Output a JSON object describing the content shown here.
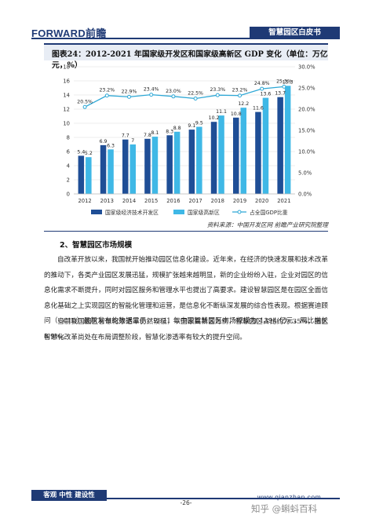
{
  "header": {
    "logo": "FORWARD前瞻",
    "tag": "智慧园区白皮书"
  },
  "figure": {
    "title": "图表24：2012-2021 年国家级开发区和国家级高新区 GDP 变化（单位：万亿元，%）",
    "source": "资料来源：中国开发区网  前瞻产业研究院整理"
  },
  "chart_data": {
    "type": "bar",
    "categories": [
      "2012",
      "2013",
      "2014",
      "2015",
      "2016",
      "2017",
      "2018",
      "2019",
      "2020",
      "2021"
    ],
    "series": [
      {
        "name": "国家级经济技术开发区",
        "values": [
          5.4,
          6.9,
          7.7,
          7.8,
          8.3,
          9.1,
          10.2,
          10.8,
          11.6,
          13.7
        ],
        "color": "#1f4e96"
      },
      {
        "name": "国家级高新区",
        "values": [
          5.2,
          6.3,
          7,
          8.1,
          8.8,
          9.5,
          11.1,
          12.2,
          13.6,
          15.3
        ],
        "color": "#3fb8e6"
      },
      {
        "name": "占全国GDP比重",
        "values": [
          20.5,
          23.2,
          22.9,
          23.4,
          23.0,
          22.5,
          23.3,
          23.2,
          24.8,
          25.3
        ],
        "axis": "right",
        "type": "line",
        "color": "#2ea8d6"
      }
    ],
    "ylim_left": [
      0,
      18
    ],
    "yticks_left": [
      0,
      2,
      4,
      6,
      8,
      10,
      12,
      14,
      16,
      18
    ],
    "ylim_right": [
      0,
      30
    ],
    "yticks_right": [
      "0.0%",
      "5.0%",
      "10.0%",
      "15.0%",
      "20.0%",
      "25.0%",
      "30.0%"
    ],
    "line_labels": [
      "20.5%",
      "23.2%",
      "22.9%",
      "23.4%",
      "23.0%",
      "22.5%",
      "23.3%",
      "23.2%",
      "24.8%",
      "25.3%"
    ],
    "legend_position": "bottom"
  },
  "section": {
    "title": "2、智慧园区市场规模",
    "paragraphs": [
      "自改革开放以来，我国就开始推动园区信息化建设。近年来，在经济的快速发展和技术改革的推动下，各类产业园区发展迅猛，规模扩张越来越明显，新的企业纷纷入驻，企业对园区的信息化需求不断提升，同时对园区服务和管理水平也提出了高要求。建设智慧园区是在园区全面信息化基础之上实现园区的智能化管理和运营，是信息化不断纵深发展的综合性表现。根据赛迪顾问（CCID）最新发布的数据显示，2021 年中国智慧园区市场规模为 1394 亿元，同比增长 8.9%。",
      "当前我国园区智慧化渗透率仍然较低，以国家高新区为例，智慧园区占比约为 35%，园区智慧化改革尚处在布局调整阶段，智慧化渗透率有较大的提升空间。"
    ]
  },
  "footer": {
    "tag": "客观 中性 建设性",
    "page": "-26-",
    "site": "www.qianzhan.com",
    "watermark": "知乎 @蝌蚪百科"
  }
}
